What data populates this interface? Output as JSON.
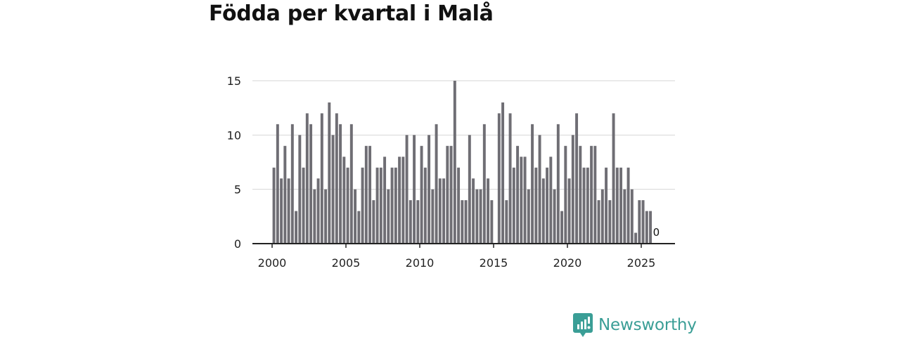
{
  "chart_data": {
    "type": "bar",
    "title": "Födda per kvartal i Malå",
    "xlabel": "",
    "ylabel": "",
    "ylim": [
      0,
      15
    ],
    "xlim": [
      2000,
      2027.3
    ],
    "yticks": [
      0,
      5,
      10,
      15
    ],
    "xticks": [
      2000,
      2005,
      2010,
      2015,
      2020,
      2025
    ],
    "start_year": 2000,
    "values": [
      7,
      11,
      6,
      9,
      6,
      11,
      3,
      10,
      7,
      12,
      11,
      5,
      6,
      12,
      5,
      13,
      10,
      12,
      11,
      8,
      7,
      11,
      5,
      3,
      7,
      9,
      9,
      4,
      7,
      7,
      8,
      5,
      7,
      7,
      8,
      8,
      10,
      4,
      10,
      4,
      9,
      7,
      10,
      5,
      11,
      6,
      6,
      9,
      9,
      15,
      7,
      4,
      4,
      10,
      6,
      5,
      5,
      11,
      6,
      4,
      0,
      12,
      13,
      4,
      12,
      7,
      9,
      8,
      8,
      5,
      11,
      7,
      10,
      6,
      7,
      8,
      5,
      11,
      3,
      9,
      6,
      10,
      12,
      9,
      7,
      7,
      9,
      9,
      4,
      5,
      7,
      4,
      12,
      7,
      7,
      5,
      7,
      5,
      1,
      4,
      4,
      3,
      3,
      0
    ],
    "annotations": [
      {
        "text": "0",
        "series_index": 103
      }
    ],
    "bar_color": "#6f6e74",
    "grid": true,
    "legend": "none"
  },
  "brand": {
    "name": "Newsworthy",
    "color": "#3a9e96"
  }
}
